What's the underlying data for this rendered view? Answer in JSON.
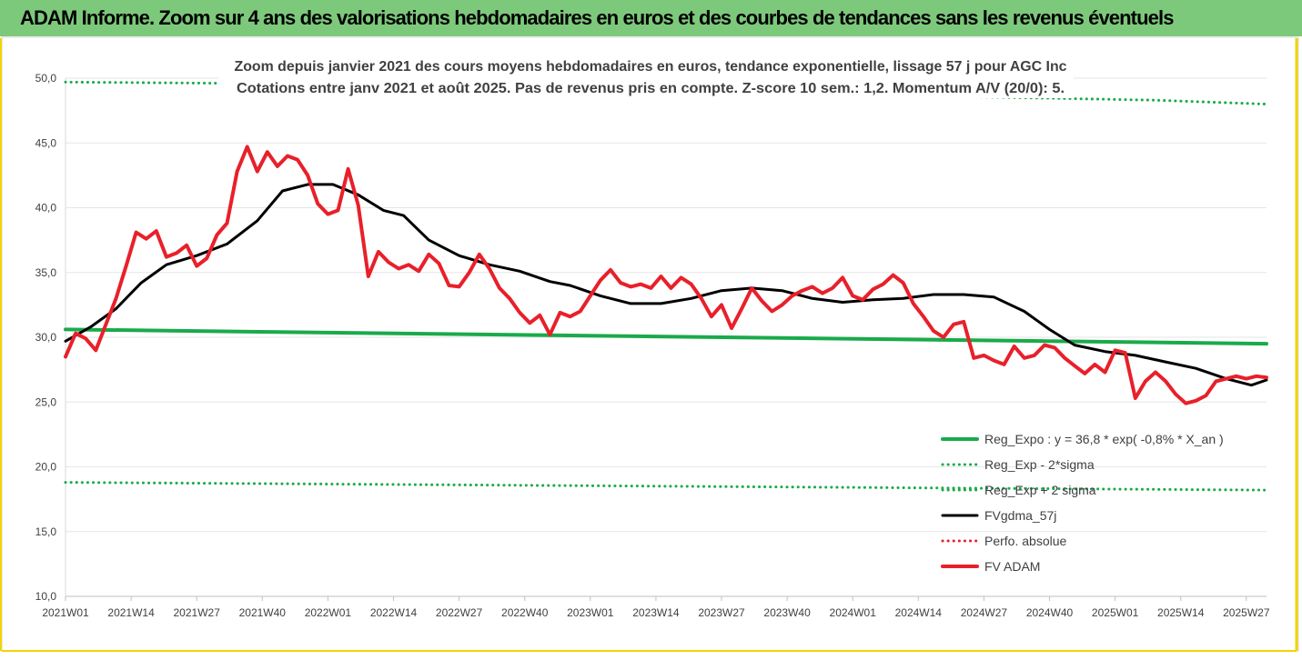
{
  "header": {
    "title": "ADAM Informe. Zoom sur 4 ans des valorisations hebdomadaires en euros et des courbes de tendances sans les revenus éventuels"
  },
  "chart_data": {
    "type": "line",
    "title_line1": "Zoom depuis janvier 2021 des cours moyens hebdomadaires en euros, tendance exponentielle, lissage 57 j pour AGC Inc",
    "title_line2": "Cotations entre janv 2021 et août 2025.  Pas de revenus pris en compte. Z-score 10 sem.: 1,2. Momentum A/V (20/0): 5.",
    "x_tick_labels": [
      "2021W01",
      "2021W14",
      "2021W27",
      "2021W40",
      "2022W01",
      "2022W14",
      "2022W27",
      "2022W40",
      "2023W01",
      "2023W14",
      "2023W27",
      "2023W40",
      "2024W01",
      "2024W14",
      "2024W27",
      "2024W40",
      "2025W01",
      "2025W14",
      "2025W27"
    ],
    "y_tick_labels": [
      "10,0",
      "15,0",
      "20,0",
      "25,0",
      "30,0",
      "35,0",
      "40,0",
      "45,0",
      "50,0"
    ],
    "ylim": [
      10,
      50
    ],
    "n_weeks": 239,
    "grid": "horizontal",
    "legend": {
      "position": "right",
      "entries": [
        {
          "label": "Reg_Expo : y = 36,8 * exp( -0,8% *  X_an )",
          "color": "#1aaa4a",
          "style": "solid"
        },
        {
          "label": "Reg_Exp - 2*sigma",
          "color": "#1aaa4a",
          "style": "dotted"
        },
        {
          "label": "Reg_Exp + 2 sigma",
          "color": "#1aaa4a",
          "style": "dotted"
        },
        {
          "label": "FVgdma_57j",
          "color": "#000000",
          "style": "solid"
        },
        {
          "label": "Perfo. absolue",
          "color": "#e8202a",
          "style": "dotted"
        },
        {
          "label": "FV ADAM",
          "color": "#e8202a",
          "style": "solid"
        }
      ]
    },
    "series": [
      {
        "name": "Reg_Expo : y = 36,8 * exp( -0,8% *  X_an )",
        "color": "#1aaa4a",
        "style": "solid",
        "points": [
          [
            0,
            30.6
          ],
          [
            238,
            29.5
          ]
        ]
      },
      {
        "name": "Reg_Exp - 2*sigma",
        "color": "#1aaa4a",
        "style": "dotted",
        "points": [
          [
            0,
            18.8
          ],
          [
            238,
            18.2
          ]
        ]
      },
      {
        "name": "Reg_Exp + 2 sigma",
        "color": "#1aaa4a",
        "style": "dotted",
        "points": [
          [
            0,
            49.7
          ],
          [
            34,
            49.6
          ],
          [
            216,
            48.3
          ],
          [
            238,
            48.0
          ]
        ]
      },
      {
        "name": "FVgdma_57j",
        "color": "#000000",
        "style": "solid",
        "points": [
          [
            0,
            29.7
          ],
          [
            5,
            30.8
          ],
          [
            10,
            32.2
          ],
          [
            15,
            34.2
          ],
          [
            20,
            35.6
          ],
          [
            26,
            36.3
          ],
          [
            32,
            37.2
          ],
          [
            38,
            39.0
          ],
          [
            43,
            41.3
          ],
          [
            48,
            41.8
          ],
          [
            53,
            41.8
          ],
          [
            58,
            41.0
          ],
          [
            63,
            39.8
          ],
          [
            67,
            39.4
          ],
          [
            72,
            37.5
          ],
          [
            78,
            36.3
          ],
          [
            84,
            35.6
          ],
          [
            90,
            35.1
          ],
          [
            96,
            34.3
          ],
          [
            100,
            34.0
          ],
          [
            106,
            33.2
          ],
          [
            112,
            32.6
          ],
          [
            118,
            32.6
          ],
          [
            124,
            33.0
          ],
          [
            130,
            33.6
          ],
          [
            136,
            33.8
          ],
          [
            142,
            33.6
          ],
          [
            148,
            33.0
          ],
          [
            154,
            32.7
          ],
          [
            160,
            32.9
          ],
          [
            166,
            33.0
          ],
          [
            172,
            33.3
          ],
          [
            178,
            33.3
          ],
          [
            184,
            33.1
          ],
          [
            190,
            32.0
          ],
          [
            195,
            30.6
          ],
          [
            200,
            29.4
          ],
          [
            206,
            28.9
          ],
          [
            212,
            28.6
          ],
          [
            218,
            28.1
          ],
          [
            224,
            27.6
          ],
          [
            230,
            26.8
          ],
          [
            235,
            26.3
          ],
          [
            238,
            26.7
          ]
        ]
      },
      {
        "name": "FV ADAM",
        "color": "#e8202a",
        "style": "solid",
        "points": [
          [
            0,
            28.5
          ],
          [
            2,
            30.3
          ],
          [
            4,
            29.9
          ],
          [
            6,
            29.0
          ],
          [
            8,
            31.0
          ],
          [
            10,
            33.0
          ],
          [
            12,
            35.5
          ],
          [
            14,
            38.1
          ],
          [
            16,
            37.6
          ],
          [
            18,
            38.2
          ],
          [
            20,
            36.2
          ],
          [
            22,
            36.5
          ],
          [
            24,
            37.1
          ],
          [
            26,
            35.5
          ],
          [
            28,
            36.1
          ],
          [
            30,
            37.9
          ],
          [
            32,
            38.8
          ],
          [
            34,
            42.8
          ],
          [
            36,
            44.7
          ],
          [
            38,
            42.8
          ],
          [
            40,
            44.3
          ],
          [
            42,
            43.2
          ],
          [
            44,
            44.0
          ],
          [
            46,
            43.7
          ],
          [
            48,
            42.5
          ],
          [
            50,
            40.3
          ],
          [
            52,
            39.5
          ],
          [
            54,
            39.8
          ],
          [
            56,
            43.0
          ],
          [
            58,
            40.2
          ],
          [
            60,
            34.7
          ],
          [
            62,
            36.6
          ],
          [
            64,
            35.8
          ],
          [
            66,
            35.3
          ],
          [
            68,
            35.6
          ],
          [
            70,
            35.1
          ],
          [
            72,
            36.4
          ],
          [
            74,
            35.7
          ],
          [
            76,
            34.0
          ],
          [
            78,
            33.9
          ],
          [
            80,
            35.0
          ],
          [
            82,
            36.4
          ],
          [
            84,
            35.3
          ],
          [
            86,
            33.8
          ],
          [
            88,
            33.0
          ],
          [
            90,
            31.9
          ],
          [
            92,
            31.1
          ],
          [
            94,
            31.7
          ],
          [
            96,
            30.2
          ],
          [
            98,
            31.9
          ],
          [
            100,
            31.6
          ],
          [
            102,
            32.0
          ],
          [
            104,
            33.2
          ],
          [
            106,
            34.4
          ],
          [
            108,
            35.2
          ],
          [
            110,
            34.2
          ],
          [
            112,
            33.9
          ],
          [
            114,
            34.1
          ],
          [
            116,
            33.8
          ],
          [
            118,
            34.7
          ],
          [
            120,
            33.8
          ],
          [
            122,
            34.6
          ],
          [
            124,
            34.1
          ],
          [
            126,
            33.0
          ],
          [
            128,
            31.6
          ],
          [
            130,
            32.5
          ],
          [
            132,
            30.7
          ],
          [
            134,
            32.2
          ],
          [
            136,
            33.8
          ],
          [
            138,
            32.8
          ],
          [
            140,
            32.0
          ],
          [
            142,
            32.5
          ],
          [
            144,
            33.2
          ],
          [
            146,
            33.6
          ],
          [
            148,
            33.9
          ],
          [
            150,
            33.4
          ],
          [
            152,
            33.8
          ],
          [
            154,
            34.6
          ],
          [
            156,
            33.2
          ],
          [
            158,
            32.9
          ],
          [
            160,
            33.7
          ],
          [
            162,
            34.1
          ],
          [
            164,
            34.8
          ],
          [
            166,
            34.2
          ],
          [
            168,
            32.6
          ],
          [
            170,
            31.6
          ],
          [
            172,
            30.5
          ],
          [
            174,
            30.0
          ],
          [
            176,
            31.0
          ],
          [
            178,
            31.2
          ],
          [
            180,
            28.4
          ],
          [
            182,
            28.6
          ],
          [
            184,
            28.2
          ],
          [
            186,
            27.9
          ],
          [
            188,
            29.3
          ],
          [
            190,
            28.4
          ],
          [
            192,
            28.6
          ],
          [
            194,
            29.4
          ],
          [
            196,
            29.2
          ],
          [
            198,
            28.4
          ],
          [
            200,
            27.8
          ],
          [
            202,
            27.2
          ],
          [
            204,
            27.9
          ],
          [
            206,
            27.3
          ],
          [
            208,
            29.0
          ],
          [
            210,
            28.8
          ],
          [
            212,
            25.3
          ],
          [
            214,
            26.6
          ],
          [
            216,
            27.3
          ],
          [
            218,
            26.6
          ],
          [
            220,
            25.6
          ],
          [
            222,
            24.9
          ],
          [
            224,
            25.1
          ],
          [
            226,
            25.5
          ],
          [
            228,
            26.6
          ],
          [
            230,
            26.8
          ],
          [
            232,
            27.0
          ],
          [
            234,
            26.8
          ],
          [
            236,
            27.0
          ],
          [
            238,
            26.9
          ]
        ]
      }
    ]
  }
}
